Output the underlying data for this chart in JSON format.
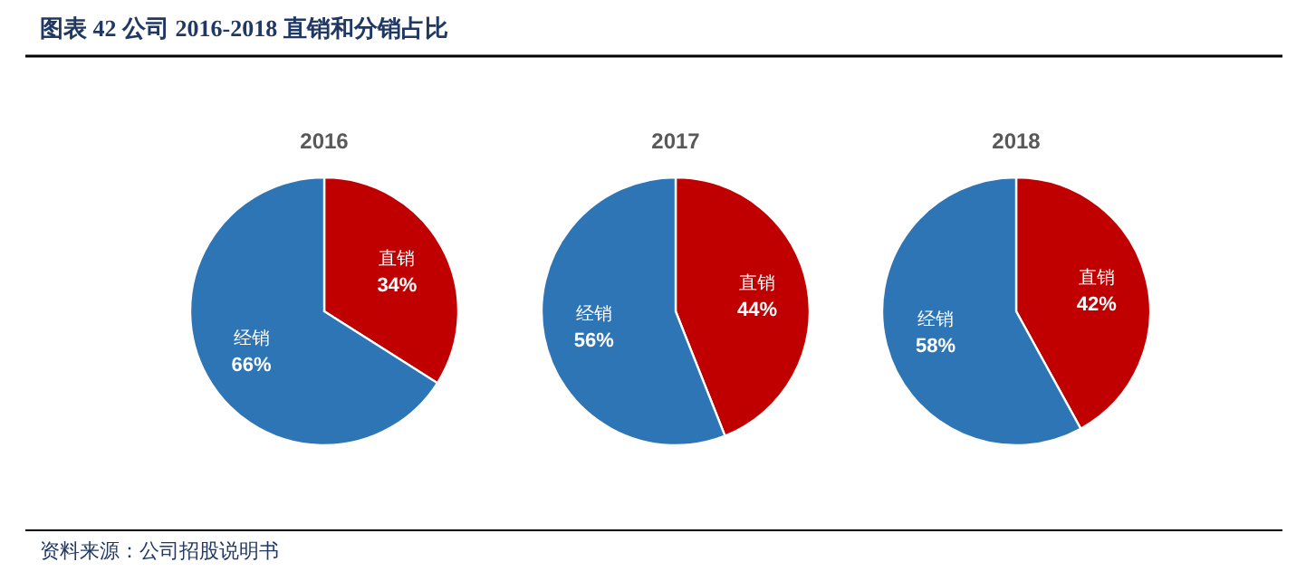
{
  "chart_data": [
    {
      "type": "other",
      "title": "图表 42  公司 2016-2018 直销和分销占比",
      "annotations": [
        "资料来源：公司招股说明书"
      ]
    },
    {
      "type": "pie",
      "title": "2016",
      "categories": [
        "直销",
        "经销"
      ],
      "values": [
        34,
        66
      ],
      "colors": [
        "#c00000",
        "#2e75b6"
      ],
      "value_labels": [
        "34%",
        "66%"
      ]
    },
    {
      "type": "pie",
      "title": "2017",
      "categories": [
        "直销",
        "经销"
      ],
      "values": [
        44,
        56
      ],
      "colors": [
        "#c00000",
        "#2e75b6"
      ],
      "value_labels": [
        "44%",
        "56%"
      ]
    },
    {
      "type": "pie",
      "title": "2018",
      "categories": [
        "直销",
        "经销"
      ],
      "values": [
        42,
        58
      ],
      "colors": [
        "#c00000",
        "#2e75b6"
      ],
      "value_labels": [
        "42%",
        "58%"
      ]
    }
  ]
}
